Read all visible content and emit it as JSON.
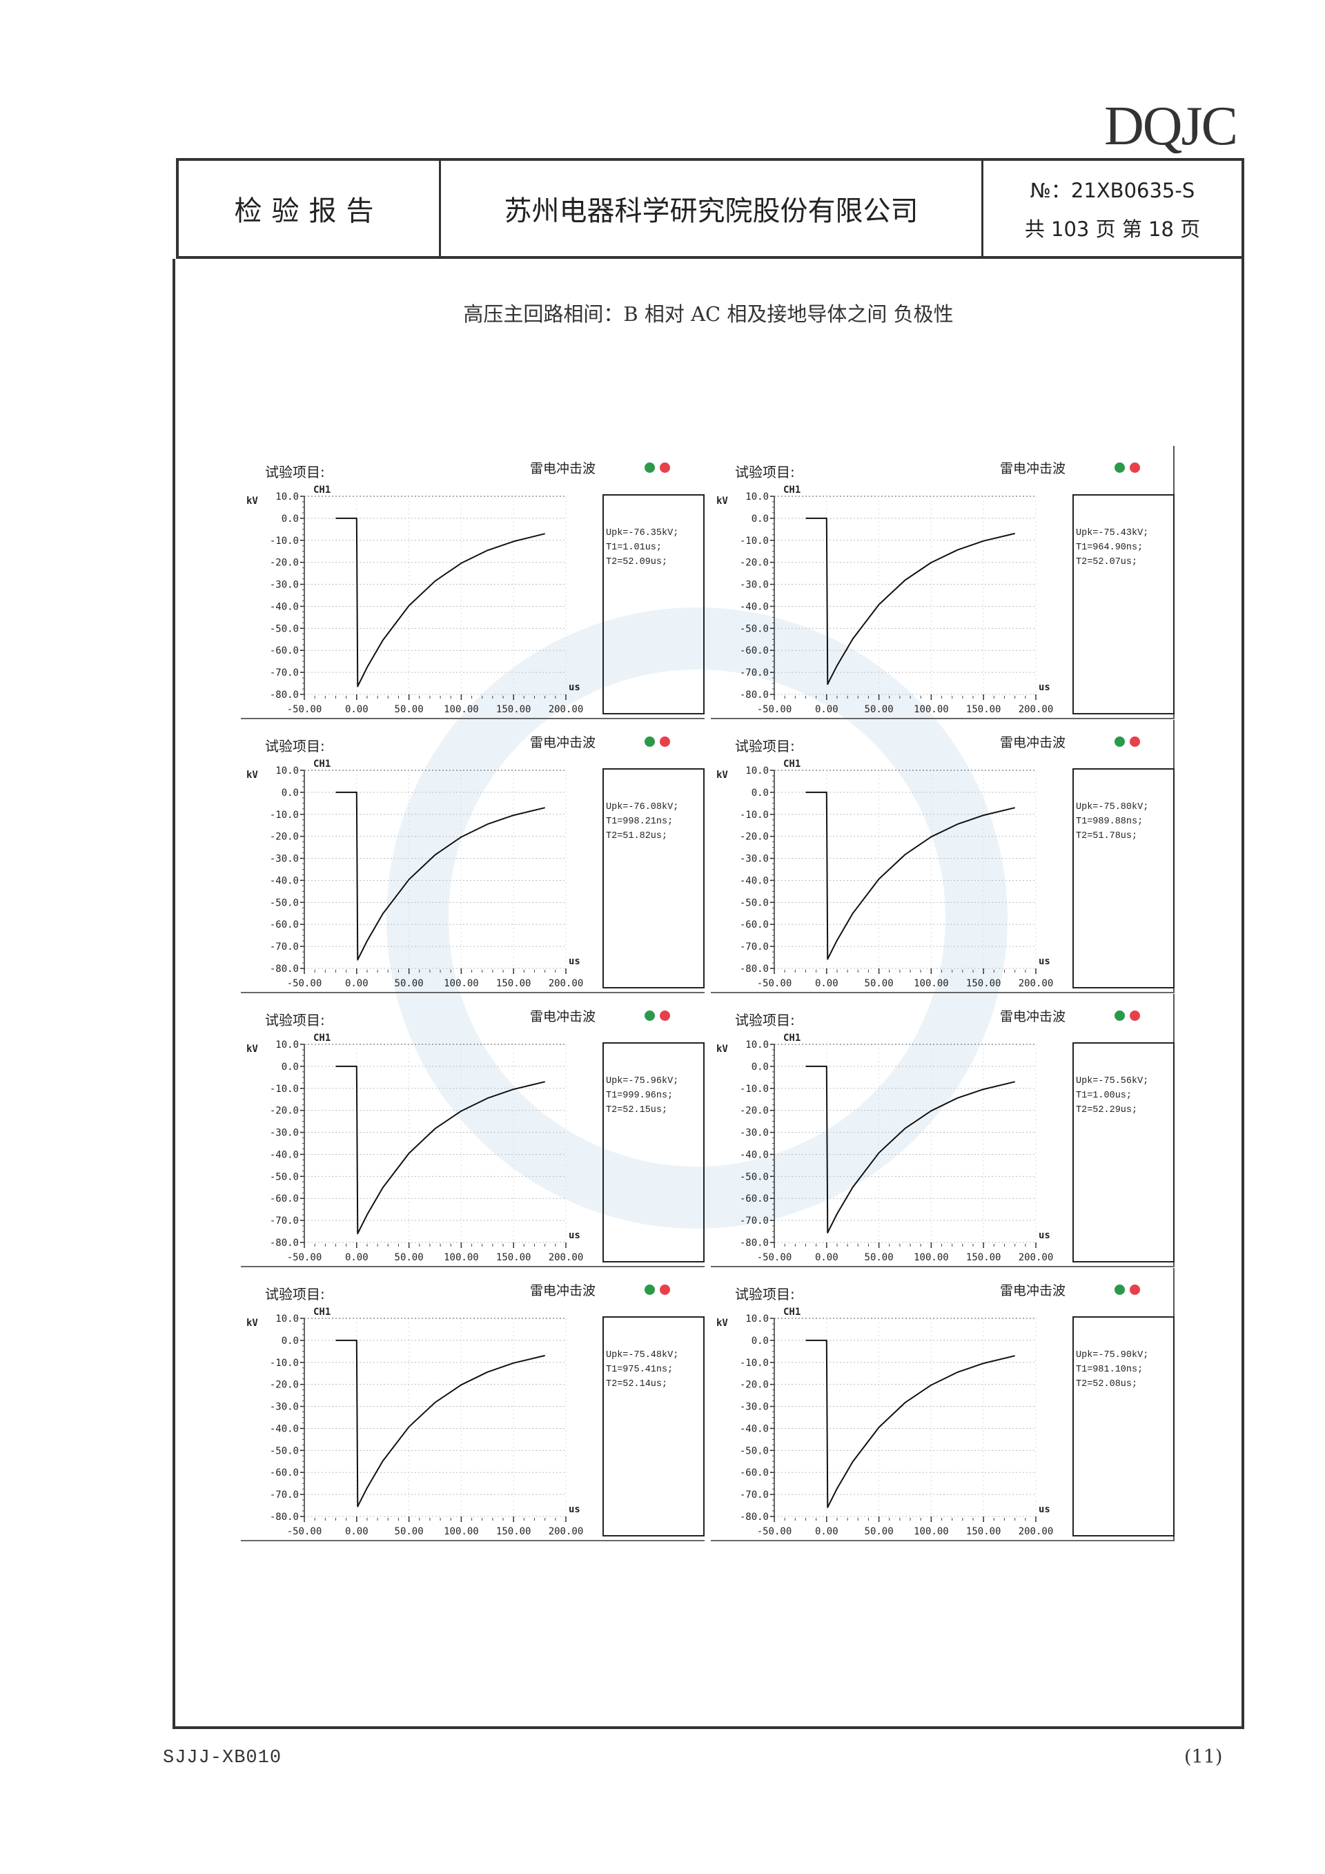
{
  "logo": "DQJC",
  "header": {
    "doc_type": "检验报告",
    "company": "苏州电器科学研究院股份有限公司",
    "report_no": "№：21XB0635-S",
    "pages": "共 103 页  第 18 页"
  },
  "subtitle": "高压主回路相间：B 相对 AC 相及接地导体之间    负极性",
  "footer": {
    "form_code": "SJJJ-XB010",
    "page_mark": "(11)"
  },
  "colors": {
    "indicator_green": "#2a9a4a",
    "indicator_red": "#e8404a"
  },
  "chart_data": [
    {
      "type": "line",
      "title": "试验项目:",
      "waveform": "雷电冲击波",
      "channel": "CH1",
      "ylabel": "kV",
      "xlabel": "us",
      "ylim": [
        -80,
        10
      ],
      "xlim": [
        -50,
        200
      ],
      "grid": true,
      "yticks": [
        "10.0",
        "0.0",
        "-10.0",
        "-20.0",
        "-30.0",
        "-40.0",
        "-50.0",
        "-60.0",
        "-70.0",
        "-80.0"
      ],
      "xticks": [
        "-50.00",
        "0.00",
        "50.00",
        "100.00",
        "150.00",
        "200.00"
      ],
      "x": [
        -20,
        0,
        1,
        2,
        10,
        25,
        50,
        75,
        100,
        125,
        150,
        180
      ],
      "y": [
        0,
        0,
        -76.4,
        -75.4,
        -67.7,
        -55.4,
        -39.7,
        -28.5,
        -20.4,
        -14.6,
        -10.5,
        -7.0
      ],
      "results": [
        "Upk=-76.35kV;",
        "T1=1.01us;",
        "T2=52.09us;"
      ]
    },
    {
      "type": "line",
      "title": "试验项目:",
      "waveform": "雷电冲击波",
      "channel": "CH1",
      "ylabel": "kV",
      "xlabel": "us",
      "ylim": [
        -80,
        10
      ],
      "xlim": [
        -50,
        200
      ],
      "grid": true,
      "yticks": [
        "10.0",
        "0.0",
        "-10.0",
        "-20.0",
        "-30.0",
        "-40.0",
        "-50.0",
        "-60.0",
        "-70.0",
        "-80.0"
      ],
      "xticks": [
        "-50.00",
        "0.00",
        "50.00",
        "100.00",
        "150.00",
        "200.00"
      ],
      "x": [
        -20,
        0,
        1,
        2,
        10,
        25,
        50,
        75,
        100,
        125,
        150,
        180
      ],
      "y": [
        0,
        0,
        -75.4,
        -74.4,
        -66.9,
        -54.8,
        -39.2,
        -28.1,
        -20.1,
        -14.4,
        -10.3,
        -6.9
      ],
      "results": [
        "Upk=-75.43kV;",
        "T1=964.90ns;",
        "T2=52.07us;"
      ]
    },
    {
      "type": "line",
      "title": "试验项目:",
      "waveform": "雷电冲击波",
      "channel": "CH1",
      "ylabel": "kV",
      "xlabel": "us",
      "ylim": [
        -80,
        10
      ],
      "xlim": [
        -50,
        200
      ],
      "grid": true,
      "yticks": [
        "10.0",
        "0.0",
        "-10.0",
        "-20.0",
        "-30.0",
        "-40.0",
        "-50.0",
        "-60.0",
        "-70.0",
        "-80.0"
      ],
      "xticks": [
        "-50.00",
        "0.00",
        "50.00",
        "100.00",
        "150.00",
        "200.00"
      ],
      "x": [
        -20,
        0,
        1,
        2,
        10,
        25,
        50,
        75,
        100,
        125,
        150,
        180
      ],
      "y": [
        0,
        0,
        -76.1,
        -75.1,
        -67.5,
        -55.2,
        -39.6,
        -28.4,
        -20.3,
        -14.5,
        -10.4,
        -7.0
      ],
      "results": [
        "Upk=-76.08kV;",
        "T1=998.21ns;",
        "T2=51.82us;"
      ]
    },
    {
      "type": "line",
      "title": "试验项目:",
      "waveform": "雷电冲击波",
      "channel": "CH1",
      "ylabel": "kV",
      "xlabel": "us",
      "ylim": [
        -80,
        10
      ],
      "xlim": [
        -50,
        200
      ],
      "grid": true,
      "yticks": [
        "10.0",
        "0.0",
        "-10.0",
        "-20.0",
        "-30.0",
        "-40.0",
        "-50.0",
        "-60.0",
        "-70.0",
        "-80.0"
      ],
      "xticks": [
        "-50.00",
        "0.00",
        "50.00",
        "100.00",
        "150.00",
        "200.00"
      ],
      "x": [
        -20,
        0,
        1,
        2,
        10,
        25,
        50,
        75,
        100,
        125,
        150,
        180
      ],
      "y": [
        0,
        0,
        -75.8,
        -74.8,
        -67.2,
        -55.0,
        -39.4,
        -28.3,
        -20.2,
        -14.5,
        -10.4,
        -7.0
      ],
      "results": [
        "Upk=-75.80kV;",
        "T1=989.88ns;",
        "T2=51.78us;"
      ]
    },
    {
      "type": "line",
      "title": "试验项目:",
      "waveform": "雷电冲击波",
      "channel": "CH1",
      "ylabel": "kV",
      "xlabel": "us",
      "ylim": [
        -80,
        10
      ],
      "xlim": [
        -50,
        200
      ],
      "grid": true,
      "yticks": [
        "10.0",
        "0.0",
        "-10.0",
        "-20.0",
        "-30.0",
        "-40.0",
        "-50.0",
        "-60.0",
        "-70.0",
        "-80.0"
      ],
      "xticks": [
        "-50.00",
        "0.00",
        "50.00",
        "100.00",
        "150.00",
        "200.00"
      ],
      "x": [
        -20,
        0,
        1,
        2,
        10,
        25,
        50,
        75,
        100,
        125,
        150,
        180
      ],
      "y": [
        0,
        0,
        -76.0,
        -75.0,
        -67.4,
        -55.1,
        -39.5,
        -28.3,
        -20.3,
        -14.5,
        -10.4,
        -7.0
      ],
      "results": [
        "Upk=-75.96kV;",
        "T1=999.96ns;",
        "T2=52.15us;"
      ]
    },
    {
      "type": "line",
      "title": "试验项目:",
      "waveform": "雷电冲击波",
      "channel": "CH1",
      "ylabel": "kV",
      "xlabel": "us",
      "ylim": [
        -80,
        10
      ],
      "xlim": [
        -50,
        200
      ],
      "grid": true,
      "yticks": [
        "10.0",
        "0.0",
        "-10.0",
        "-20.0",
        "-30.0",
        "-40.0",
        "-50.0",
        "-60.0",
        "-70.0",
        "-80.0"
      ],
      "xticks": [
        "-50.00",
        "0.00",
        "50.00",
        "100.00",
        "150.00",
        "200.00"
      ],
      "x": [
        -20,
        0,
        1,
        2,
        10,
        25,
        50,
        75,
        100,
        125,
        150,
        180
      ],
      "y": [
        0,
        0,
        -75.6,
        -74.6,
        -67.0,
        -54.9,
        -39.3,
        -28.2,
        -20.2,
        -14.4,
        -10.4,
        -7.0
      ],
      "results": [
        "Upk=-75.56kV;",
        "T1=1.00us;",
        "T2=52.29us;"
      ]
    },
    {
      "type": "line",
      "title": "试验项目:",
      "waveform": "雷电冲击波",
      "channel": "CH1",
      "ylabel": "kV",
      "xlabel": "us",
      "ylim": [
        -80,
        10
      ],
      "xlim": [
        -50,
        200
      ],
      "grid": true,
      "yticks": [
        "10.0",
        "0.0",
        "-10.0",
        "-20.0",
        "-30.0",
        "-40.0",
        "-50.0",
        "-60.0",
        "-70.0",
        "-80.0"
      ],
      "xticks": [
        "-50.00",
        "0.00",
        "50.00",
        "100.00",
        "150.00",
        "200.00"
      ],
      "x": [
        -20,
        0,
        1,
        2,
        10,
        25,
        50,
        75,
        100,
        125,
        150,
        180
      ],
      "y": [
        0,
        0,
        -75.5,
        -74.5,
        -67.0,
        -54.8,
        -39.3,
        -28.2,
        -20.2,
        -14.4,
        -10.3,
        -6.9
      ],
      "results": [
        "Upk=-75.48kV;",
        "T1=975.41ns;",
        "T2=52.14us;"
      ]
    },
    {
      "type": "line",
      "title": "试验项目:",
      "waveform": "雷电冲击波",
      "channel": "CH1",
      "ylabel": "kV",
      "xlabel": "us",
      "ylim": [
        -80,
        10
      ],
      "xlim": [
        -50,
        200
      ],
      "grid": true,
      "yticks": [
        "10.0",
        "0.0",
        "-10.0",
        "-20.0",
        "-30.0",
        "-40.0",
        "-50.0",
        "-60.0",
        "-70.0",
        "-80.0"
      ],
      "xticks": [
        "-50.00",
        "0.00",
        "50.00",
        "100.00",
        "150.00",
        "200.00"
      ],
      "x": [
        -20,
        0,
        1,
        2,
        10,
        25,
        50,
        75,
        100,
        125,
        150,
        180
      ],
      "y": [
        0,
        0,
        -75.9,
        -74.9,
        -67.3,
        -55.1,
        -39.5,
        -28.3,
        -20.3,
        -14.5,
        -10.4,
        -7.0
      ],
      "results": [
        "Upk=-75.90kV;",
        "T1=981.10ns;",
        "T2=52.08us;"
      ]
    }
  ]
}
